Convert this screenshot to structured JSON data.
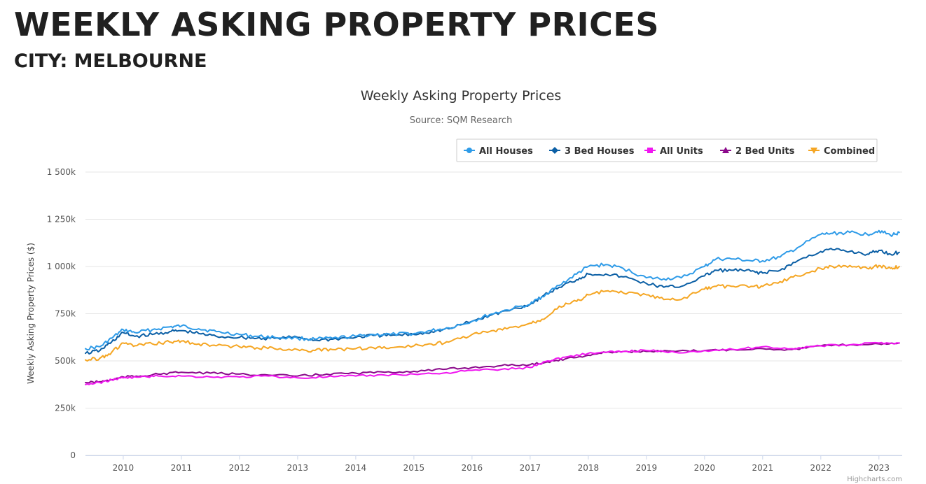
{
  "header": {
    "title": "WEEKLY ASKING PROPERTY PRICES",
    "subtitle": "CITY: MELBOURNE"
  },
  "chart_data": {
    "type": "line",
    "title": "Weekly Asking Property Prices",
    "subtitle": "Source: SQM Research",
    "xlabel": "",
    "ylabel": "Weekly Asking Property Prices ($)",
    "xlim": [
      2009.35,
      2023.4
    ],
    "ylim": [
      0,
      1500000
    ],
    "x_ticks": [
      "2010",
      "2011",
      "2012",
      "2013",
      "2014",
      "2015",
      "2016",
      "2017",
      "2018",
      "2019",
      "2020",
      "2021",
      "2022",
      "2023"
    ],
    "y_ticks": [
      "0",
      "250k",
      "500k",
      "750k",
      "1 000k",
      "1 250k",
      "1 500k"
    ],
    "grid": true,
    "legend_position": "top-right",
    "credits": "Highcharts.com",
    "series": [
      {
        "name": "All Houses",
        "color": "#2E9BE8",
        "marker": "circle",
        "x": [
          2009.35,
          2009.6,
          2009.8,
          2010.0,
          2010.2,
          2010.5,
          2010.8,
          2011.0,
          2011.3,
          2011.6,
          2012.0,
          2012.3,
          2012.6,
          2013.0,
          2013.3,
          2013.6,
          2014.0,
          2014.3,
          2014.6,
          2015.0,
          2015.3,
          2015.6,
          2016.0,
          2016.3,
          2016.6,
          2017.0,
          2017.2,
          2017.5,
          2017.8,
          2018.0,
          2018.3,
          2018.6,
          2019.0,
          2019.3,
          2019.6,
          2020.0,
          2020.2,
          2020.5,
          2020.8,
          2021.0,
          2021.3,
          2021.6,
          2022.0,
          2022.2,
          2022.5,
          2022.8,
          2023.0,
          2023.2,
          2023.35
        ],
        "y": [
          565000,
          575000,
          620000,
          665000,
          650000,
          665000,
          680000,
          685000,
          670000,
          655000,
          640000,
          630000,
          625000,
          620000,
          615000,
          620000,
          630000,
          640000,
          640000,
          645000,
          660000,
          675000,
          710000,
          745000,
          770000,
          800000,
          840000,
          900000,
          960000,
          1000000,
          1010000,
          990000,
          940000,
          935000,
          940000,
          1000000,
          1040000,
          1040000,
          1030000,
          1030000,
          1050000,
          1100000,
          1170000,
          1175000,
          1180000,
          1170000,
          1190000,
          1165000,
          1180000
        ]
      },
      {
        "name": "3 Bed Houses",
        "color": "#0B5FA5",
        "marker": "diamond",
        "x": [
          2009.35,
          2009.6,
          2009.8,
          2010.0,
          2010.2,
          2010.5,
          2010.8,
          2011.0,
          2011.3,
          2011.6,
          2012.0,
          2012.3,
          2012.6,
          2013.0,
          2013.3,
          2013.6,
          2014.0,
          2014.3,
          2014.6,
          2015.0,
          2015.3,
          2015.6,
          2016.0,
          2016.3,
          2016.6,
          2017.0,
          2017.2,
          2017.5,
          2017.8,
          2018.0,
          2018.3,
          2018.6,
          2019.0,
          2019.3,
          2019.6,
          2020.0,
          2020.2,
          2020.5,
          2020.8,
          2021.0,
          2021.3,
          2021.6,
          2022.0,
          2022.2,
          2022.5,
          2022.8,
          2023.0,
          2023.2,
          2023.35
        ],
        "y": [
          540000,
          555000,
          600000,
          650000,
          630000,
          640000,
          655000,
          660000,
          645000,
          630000,
          625000,
          620000,
          620000,
          625000,
          610000,
          615000,
          625000,
          635000,
          635000,
          640000,
          655000,
          670000,
          710000,
          740000,
          765000,
          800000,
          840000,
          890000,
          930000,
          960000,
          960000,
          945000,
          910000,
          890000,
          895000,
          950000,
          980000,
          980000,
          975000,
          965000,
          980000,
          1030000,
          1080000,
          1090000,
          1080000,
          1065000,
          1085000,
          1065000,
          1075000
        ]
      },
      {
        "name": "All Units",
        "color": "#F016F0",
        "marker": "square",
        "x": [
          2009.35,
          2009.6,
          2009.8,
          2010.0,
          2010.3,
          2010.6,
          2011.0,
          2011.5,
          2012.0,
          2012.5,
          2013.0,
          2013.5,
          2014.0,
          2014.5,
          2015.0,
          2015.5,
          2016.0,
          2016.5,
          2017.0,
          2017.3,
          2017.6,
          2018.0,
          2018.3,
          2018.6,
          2019.0,
          2019.5,
          2020.0,
          2020.5,
          2021.0,
          2021.5,
          2022.0,
          2022.5,
          2023.0,
          2023.35
        ],
        "y": [
          375000,
          385000,
          400000,
          410000,
          415000,
          420000,
          420000,
          415000,
          415000,
          420000,
          410000,
          415000,
          420000,
          425000,
          430000,
          435000,
          450000,
          455000,
          465000,
          500000,
          520000,
          540000,
          545000,
          550000,
          555000,
          545000,
          555000,
          560000,
          575000,
          565000,
          580000,
          585000,
          595000,
          595000
        ]
      },
      {
        "name": "2 Bed Units",
        "color": "#8B0A8B",
        "marker": "triangle",
        "x": [
          2009.35,
          2009.6,
          2009.8,
          2010.0,
          2010.3,
          2010.6,
          2011.0,
          2011.5,
          2012.0,
          2012.5,
          2013.0,
          2013.5,
          2014.0,
          2014.5,
          2015.0,
          2015.5,
          2016.0,
          2016.5,
          2017.0,
          2017.3,
          2017.6,
          2018.0,
          2018.3,
          2018.6,
          2019.0,
          2019.5,
          2020.0,
          2020.5,
          2021.0,
          2021.5,
          2022.0,
          2022.5,
          2023.0,
          2023.35
        ],
        "y": [
          385000,
          390000,
          400000,
          415000,
          420000,
          430000,
          440000,
          435000,
          430000,
          425000,
          420000,
          430000,
          435000,
          440000,
          445000,
          455000,
          465000,
          475000,
          480000,
          495000,
          510000,
          530000,
          545000,
          550000,
          550000,
          550000,
          555000,
          560000,
          565000,
          560000,
          580000,
          585000,
          590000,
          595000
        ]
      },
      {
        "name": "Combined",
        "color": "#F5A623",
        "marker": "triangle-down",
        "x": [
          2009.35,
          2009.6,
          2009.8,
          2010.0,
          2010.2,
          2010.5,
          2010.8,
          2011.0,
          2011.3,
          2011.6,
          2012.0,
          2012.3,
          2012.6,
          2013.0,
          2013.3,
          2013.6,
          2014.0,
          2014.3,
          2014.6,
          2015.0,
          2015.3,
          2015.6,
          2016.0,
          2016.3,
          2016.6,
          2017.0,
          2017.2,
          2017.5,
          2017.8,
          2018.0,
          2018.3,
          2018.6,
          2019.0,
          2019.3,
          2019.6,
          2020.0,
          2020.2,
          2020.5,
          2020.8,
          2021.0,
          2021.3,
          2021.6,
          2022.0,
          2022.2,
          2022.5,
          2022.8,
          2023.0,
          2023.2,
          2023.35
        ],
        "y": [
          505000,
          515000,
          545000,
          595000,
          580000,
          590000,
          600000,
          605000,
          590000,
          580000,
          575000,
          570000,
          565000,
          560000,
          555000,
          560000,
          565000,
          570000,
          570000,
          580000,
          590000,
          600000,
          640000,
          655000,
          670000,
          700000,
          720000,
          790000,
          815000,
          850000,
          870000,
          860000,
          850000,
          825000,
          825000,
          880000,
          895000,
          895000,
          895000,
          895000,
          920000,
          950000,
          990000,
          1000000,
          1005000,
          990000,
          1005000,
          990000,
          1000000
        ]
      }
    ]
  }
}
